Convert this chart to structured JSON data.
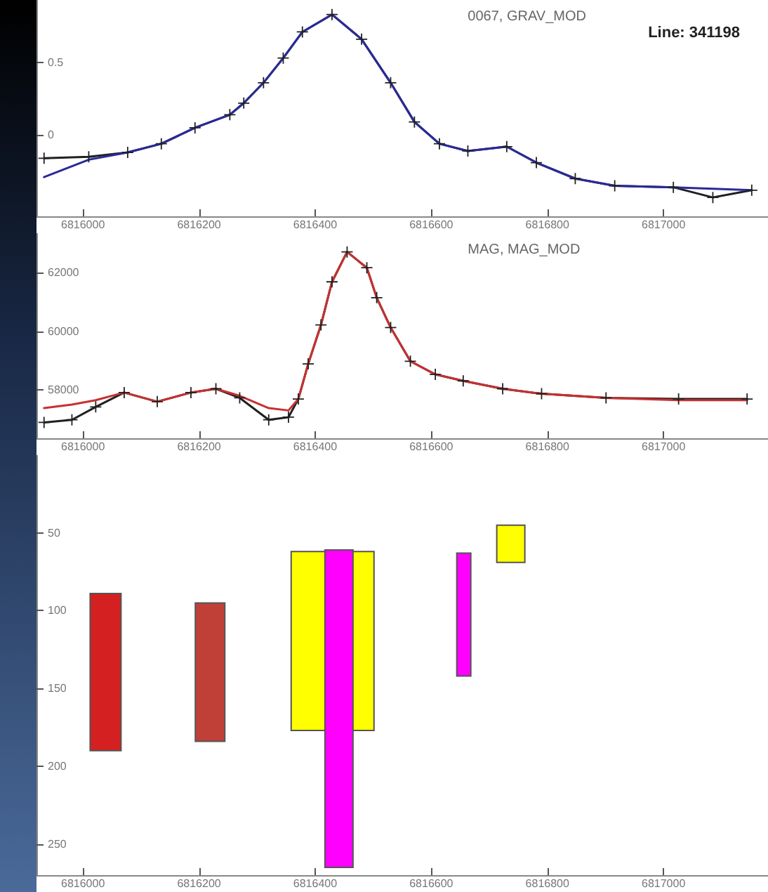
{
  "chart_data": [
    {
      "type": "line",
      "title": "0067, GRAV_MOD",
      "annotations": [
        "Line: 341198"
      ],
      "xlim": [
        6815920,
        6817180
      ],
      "xticks": [
        6816000,
        6816200,
        6816400,
        6816600,
        6816800,
        6817000
      ],
      "ylim": [
        -0.56,
        0.93
      ],
      "yticks": [
        0,
        0.5
      ],
      "x": [
        6815933,
        6816010,
        6816077,
        6816135,
        6816193,
        6816253,
        6816277,
        6816311,
        6816345,
        6816378,
        6816429,
        6816480,
        6816530,
        6816571,
        6816614,
        6816663,
        6816730,
        6816781,
        6816848,
        6816916,
        6817017,
        6817085,
        6817152
      ],
      "series": [
        {
          "color": "#202020",
          "marker": "cross",
          "values": [
            -0.16,
            -0.15,
            -0.12,
            -0.06,
            0.05,
            0.14,
            0.22,
            0.36,
            0.53,
            0.71,
            0.83,
            0.66,
            0.36,
            0.09,
            -0.06,
            -0.11,
            -0.08,
            -0.19,
            -0.3,
            -0.35,
            -0.36,
            -0.43,
            -0.38
          ]
        },
        {
          "color": "#2a2a9a",
          "marker": "none",
          "values": [
            -0.29,
            -0.17,
            -0.12,
            -0.06,
            0.05,
            0.14,
            0.22,
            0.36,
            0.53,
            0.71,
            0.83,
            0.66,
            0.36,
            0.09,
            -0.06,
            -0.11,
            -0.08,
            -0.19,
            -0.3,
            -0.35,
            -0.36,
            -0.37,
            -0.38
          ]
        }
      ]
    },
    {
      "type": "line",
      "title": "MAG, MAG_MOD",
      "xlim": [
        6815920,
        6817180
      ],
      "xticks": [
        6816000,
        6816200,
        6816400,
        6816600,
        6816800,
        6817000
      ],
      "ylim": [
        56350,
        63350
      ],
      "yticks": [
        58000,
        60000,
        62000
      ],
      "x": [
        6815933,
        6815981,
        6816022,
        6816071,
        6816128,
        6816186,
        6816229,
        6816270,
        6816320,
        6816354,
        6816371,
        6816388,
        6816410,
        6816429,
        6816455,
        6816489,
        6816506,
        6816530,
        6816564,
        6816607,
        6816655,
        6816723,
        6816790,
        6816901,
        6817026,
        6817144
      ],
      "series": [
        {
          "color": "#202020",
          "marker": "cross",
          "values": [
            56890,
            56980,
            57420,
            57910,
            57600,
            57910,
            58040,
            57730,
            56980,
            57070,
            57690,
            58890,
            60220,
            61690,
            62710,
            62170,
            61150,
            60130,
            58980,
            58530,
            58310,
            58040,
            57870,
            57730,
            57690,
            57690
          ]
        },
        {
          "color": "#c83030",
          "marker": "none",
          "values": [
            57380,
            57500,
            57650,
            57910,
            57600,
            57910,
            58040,
            57800,
            57380,
            57300,
            57690,
            58890,
            60220,
            61690,
            62710,
            62170,
            61150,
            60130,
            58980,
            58530,
            58310,
            58040,
            57870,
            57730,
            57650,
            57650
          ]
        }
      ]
    },
    {
      "type": "bar",
      "xlim": [
        6815920,
        6817180
      ],
      "xticks": [
        6816000,
        6816200,
        6816400,
        6816600,
        6816800,
        6817000
      ],
      "ylim": [
        270,
        0
      ],
      "yticks": [
        50,
        100,
        150,
        200,
        250
      ],
      "series": [
        {
          "color": "#d42020",
          "x": [
            6816039
          ],
          "base": [
            89
          ],
          "values": [
            101
          ]
        },
        {
          "color": "#c04038",
          "x": [
            6816219
          ],
          "base": [
            95
          ],
          "values": [
            89
          ]
        },
        {
          "color": "#ffff00",
          "x": [
            6816430
          ],
          "base": [
            62
          ],
          "values": [
            115
          ]
        },
        {
          "color": "#ff00ff",
          "x": [
            6816441
          ],
          "base": [
            61
          ],
          "values": [
            204
          ]
        },
        {
          "color": "#ff00ff",
          "x": [
            6816656
          ],
          "base": [
            63
          ],
          "values": [
            79
          ]
        },
        {
          "color": "#ffff00",
          "x": [
            6816737
          ],
          "base": [
            45
          ],
          "values": [
            24
          ]
        }
      ]
    }
  ]
}
